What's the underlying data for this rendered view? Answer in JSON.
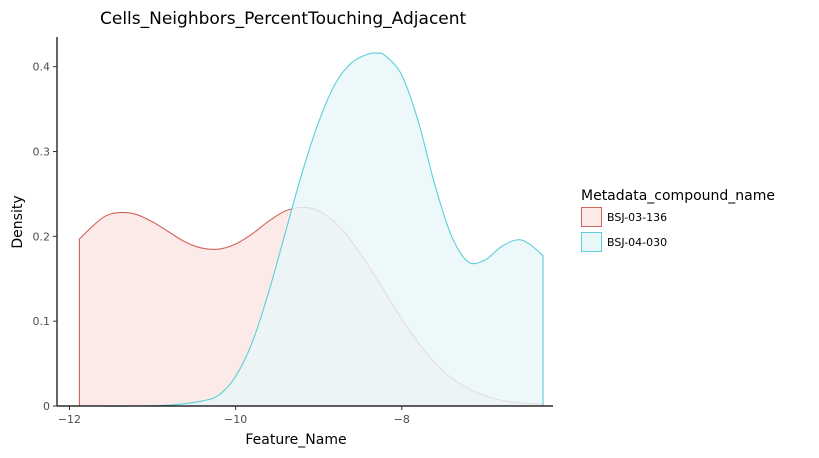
{
  "chart_data": {
    "type": "area",
    "title": "Cells_Neighbors_PercentTouching_Adjacent",
    "xlabel": "Feature_Name",
    "ylabel": "Density",
    "xlim": [
      -12.15,
      -6.18
    ],
    "ylim": [
      0,
      0.435
    ],
    "x_ticks": [
      -12,
      -10,
      -8
    ],
    "x_tick_labels": [
      "−12",
      "−10",
      "−8"
    ],
    "y_ticks": [
      0,
      0.1,
      0.2,
      0.3,
      0.4
    ],
    "y_tick_labels": [
      "0",
      "0.1",
      "0.2",
      "0.3",
      "0.4"
    ],
    "grid": false,
    "legend": {
      "title": "Metadata_compound_name",
      "placement": "right"
    },
    "series": [
      {
        "name": "BSJ-03-136",
        "color": "#d0655b",
        "fill": "#fbeae8",
        "x": [
          -11.88,
          -11.6,
          -11.4,
          -11.2,
          -11.0,
          -10.8,
          -10.6,
          -10.4,
          -10.2,
          -10.0,
          -9.8,
          -9.6,
          -9.4,
          -9.2,
          -9.05,
          -8.9,
          -8.7,
          -8.5,
          -8.3,
          -8.1,
          -7.9,
          -7.7,
          -7.5,
          -7.3,
          -7.1,
          -6.9,
          -6.7,
          -6.5,
          -6.3
        ],
        "values": [
          0.197,
          0.222,
          0.228,
          0.226,
          0.217,
          0.205,
          0.193,
          0.186,
          0.185,
          0.191,
          0.203,
          0.218,
          0.23,
          0.234,
          0.232,
          0.224,
          0.206,
          0.18,
          0.15,
          0.118,
          0.088,
          0.062,
          0.041,
          0.026,
          0.016,
          0.009,
          0.005,
          0.003,
          0.002
        ]
      },
      {
        "name": "BSJ-04-030",
        "color": "#5ccfd9",
        "fill": "#e9f7f9",
        "x": [
          -11.88,
          -11.2,
          -10.8,
          -10.4,
          -10.2,
          -10.0,
          -9.8,
          -9.6,
          -9.4,
          -9.2,
          -9.0,
          -8.8,
          -8.6,
          -8.4,
          -8.3,
          -8.2,
          -8.0,
          -7.8,
          -7.6,
          -7.4,
          -7.2,
          -7.0,
          -6.8,
          -6.6,
          -6.45,
          -6.3
        ],
        "values": [
          0.0,
          0.0,
          0.001,
          0.006,
          0.013,
          0.035,
          0.075,
          0.135,
          0.205,
          0.275,
          0.335,
          0.38,
          0.405,
          0.415,
          0.416,
          0.413,
          0.39,
          0.335,
          0.26,
          0.2,
          0.17,
          0.172,
          0.188,
          0.196,
          0.19,
          0.177
        ]
      }
    ]
  }
}
